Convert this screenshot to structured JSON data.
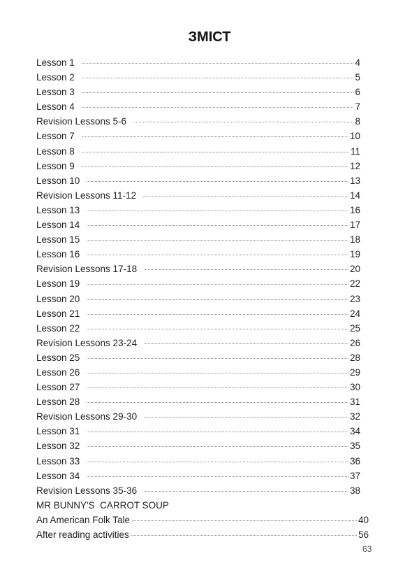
{
  "title": "ЗМІСТ",
  "entries": [
    {
      "label": "Lesson 1",
      "page": "4"
    },
    {
      "label": "Lesson 2",
      "page": "5"
    },
    {
      "label": "Lesson 3",
      "page": "6"
    },
    {
      "label": "Lesson 4",
      "page": "7"
    },
    {
      "label": "Revision Lessons 5-6",
      "page": "8"
    },
    {
      "label": "Lesson 7",
      "page": "10"
    },
    {
      "label": "Lesson 8",
      "page": "11"
    },
    {
      "label": "Lesson 9",
      "page": "12"
    },
    {
      "label": "Lesson 10",
      "page": "13"
    },
    {
      "label": "Revision Lessons 11-12",
      "page": "14"
    },
    {
      "label": "Lesson 13",
      "page": "16"
    },
    {
      "label": "Lesson 14",
      "page": "17"
    },
    {
      "label": "Lesson 15",
      "page": "18"
    },
    {
      "label": "Lesson 16",
      "page": "19"
    },
    {
      "label": "Revision Lessons 17-18",
      "page": "20"
    },
    {
      "label": "Lesson 19",
      "page": "22"
    },
    {
      "label": "Lesson 20",
      "page": "23"
    },
    {
      "label": "Lesson 21",
      "page": "24"
    },
    {
      "label": "Lesson 22",
      "page": "25"
    },
    {
      "label": "Revision Lessons 23-24",
      "page": "26"
    },
    {
      "label": "Lesson 25",
      "page": "28"
    },
    {
      "label": "Lesson 26",
      "page": "29"
    },
    {
      "label": "Lesson 27",
      "page": "30"
    },
    {
      "label": "Lesson 28",
      "page": "31"
    },
    {
      "label": "Revision Lessons 29-30",
      "page": "32"
    },
    {
      "label": "Lesson 31",
      "page": "34"
    },
    {
      "label": "Lesson 32",
      "page": "35"
    },
    {
      "label": "Lesson 33",
      "page": "36"
    },
    {
      "label": "Lesson 34",
      "page": "37"
    },
    {
      "label": "Revision Lessons 35-36",
      "page": "38"
    },
    {
      "label": "MR BUNNY'S  CARROT SOUP",
      "page": ""
    },
    {
      "label": "An American Folk Tale",
      "page": "40"
    },
    {
      "label": "After reading activities",
      "page": "56"
    }
  ],
  "page_number": "63"
}
